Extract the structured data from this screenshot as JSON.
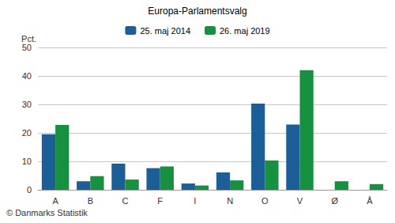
{
  "chart_data": {
    "type": "bar",
    "title": "Europa-Parlamentsvalg",
    "ylabel": "Pct.",
    "source": "© Danmarks Statistik",
    "categories": [
      "A",
      "B",
      "C",
      "F",
      "I",
      "N",
      "O",
      "V",
      "Ø",
      "Å"
    ],
    "series": [
      {
        "name": "25. maj 2014",
        "color": "#1c5f98",
        "values": [
          19.5,
          3.0,
          9.2,
          7.6,
          2.2,
          6.1,
          30.3,
          22.9,
          null,
          null
        ]
      },
      {
        "name": "26. maj 2019",
        "color": "#17903f",
        "values": [
          22.8,
          4.8,
          3.6,
          8.2,
          1.5,
          3.3,
          10.3,
          42.0,
          3.0,
          2.0
        ]
      }
    ],
    "ylim": [
      0,
      50
    ],
    "yticks": [
      0,
      10,
      20,
      30,
      40,
      50
    ],
    "grid": true,
    "legend": "top",
    "data_labels": false
  }
}
